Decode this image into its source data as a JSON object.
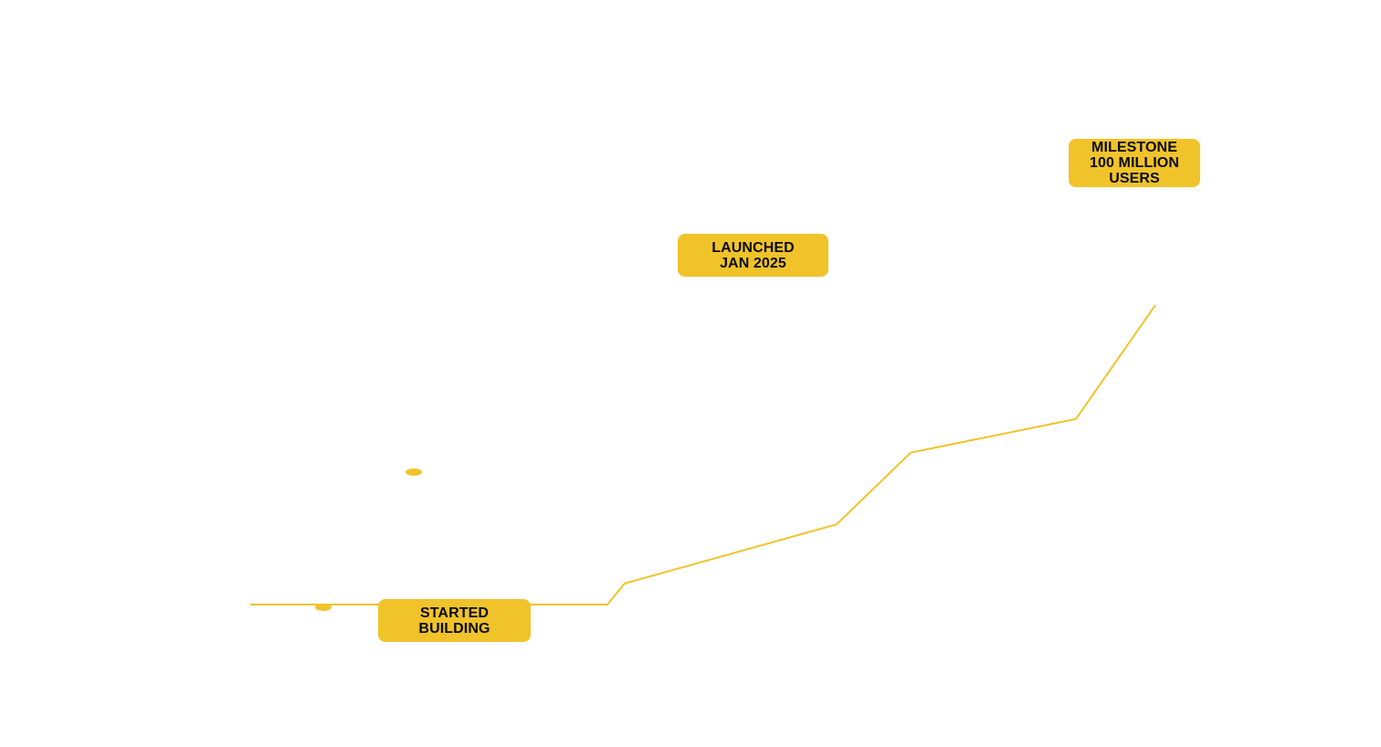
{
  "chart_data": {
    "type": "line",
    "title": "",
    "xlabel": "",
    "ylabel": "",
    "grid": false,
    "legend": "none",
    "color": "#f0c32b",
    "x": [
      0,
      1,
      2,
      3,
      4,
      5,
      6,
      7,
      8,
      9,
      10
    ],
    "y": [
      0,
      0,
      0,
      0,
      0,
      0.5,
      1.9,
      3.6,
      4.4,
      7.1,
      9.7
    ],
    "xlim": [
      0,
      10
    ],
    "ylim": [
      0,
      9.7
    ],
    "markers": [
      {
        "x": 0.2,
        "y": 0
      },
      {
        "x": 0.45,
        "y": 2.3
      }
    ],
    "annotations": [
      {
        "id": "started",
        "lines": [
          "STARTED",
          "BUILDING"
        ]
      },
      {
        "id": "launched",
        "lines": [
          "LAUNCHED",
          "JAN 2025"
        ]
      },
      {
        "id": "milestone",
        "lines": [
          "MILESTONE",
          "100 MILLION",
          "USERS"
        ]
      }
    ]
  }
}
